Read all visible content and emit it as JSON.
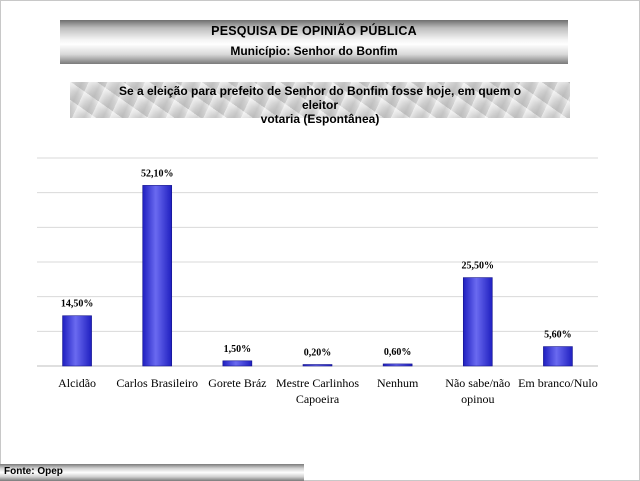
{
  "header": {
    "title": "PESQUISA DE OPINIÃO PÚBLICA",
    "subtitle": "Município: Senhor do Bonfim"
  },
  "question": {
    "line1": "Se a eleição para prefeito de Senhor do Bonfim fosse hoje, em quem o eleitor",
    "line2": "votaria (Espontânea)"
  },
  "footer": {
    "source": "Fonte: Opep"
  },
  "colors": {
    "bar": "#1f1fc0",
    "bar_light": "#6a6af0",
    "grid": "#d9d9d9"
  },
  "chart_data": {
    "type": "bar",
    "categories": [
      [
        "Alcidão"
      ],
      [
        "Carlos Brasileiro"
      ],
      [
        "Gorete Bráz"
      ],
      [
        "Mestre Carlinhos",
        "Capoeira"
      ],
      [
        "Nenhum"
      ],
      [
        "Não sabe/não",
        "opinou"
      ],
      [
        "Em branco/Nulo"
      ]
    ],
    "values": [
      14.5,
      52.1,
      1.5,
      0.2,
      0.6,
      25.5,
      5.6
    ],
    "data_labels": [
      "14,50%",
      "52,10%",
      "1,50%",
      "0,20%",
      "0,60%",
      "25,50%",
      "5,60%"
    ],
    "ylim": [
      0,
      60
    ],
    "grid": true,
    "legend": "none"
  }
}
